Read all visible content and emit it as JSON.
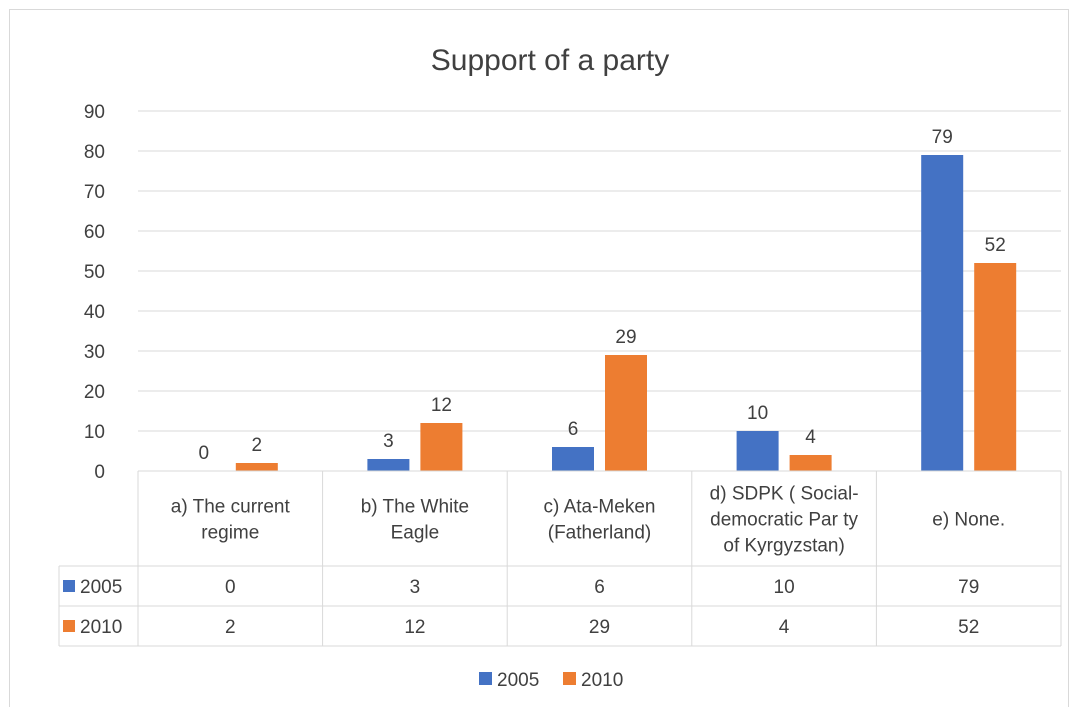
{
  "chart_data": {
    "type": "bar",
    "title": "Support of a party",
    "categories": [
      [
        "a) The current",
        "regime"
      ],
      [
        "b) The  White",
        "Eagle"
      ],
      [
        "c) Ata-Meken",
        "(Fatherland)"
      ],
      [
        "d) SDPK ( Social-",
        "democratic Par ty",
        "of Kyrgyzstan)"
      ],
      [
        "e) None."
      ]
    ],
    "series": [
      {
        "name": "2005",
        "color": "#4472c4",
        "values": [
          0,
          3,
          6,
          10,
          79
        ]
      },
      {
        "name": "2010",
        "color": "#ed7d31",
        "values": [
          2,
          12,
          29,
          4,
          52
        ]
      }
    ],
    "ylim": [
      0,
      90
    ],
    "yticks": [
      0,
      10,
      20,
      30,
      40,
      50,
      60,
      70,
      80,
      90
    ],
    "grid": true,
    "data_labels": true,
    "data_table": true,
    "legend": "bottom-center"
  }
}
